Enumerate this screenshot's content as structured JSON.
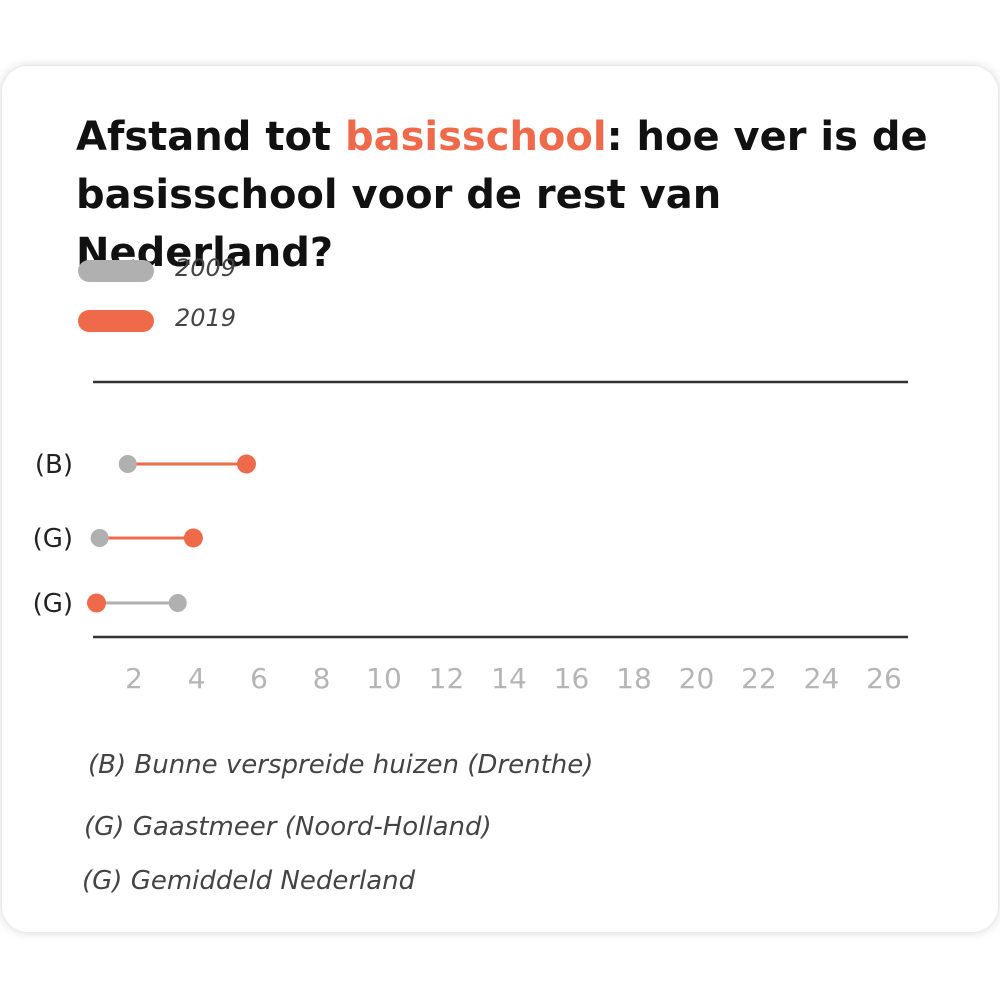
{
  "title": {
    "before": "Afstand tot ",
    "highlight": "basisschool",
    "after": ": hoe ver is de basisschool voor de rest van Nederland?"
  },
  "colors": {
    "series_2009": "#b0b0b0",
    "series_2019": "#ee6a4b",
    "axis": "#333333",
    "tick": "#b5b5b5"
  },
  "chart_data": {
    "type": "dumbbell",
    "legend": [
      {
        "name": "2009",
        "color": "#b0b0b0"
      },
      {
        "name": "2019",
        "color": "#ee6a4b"
      }
    ],
    "categories": [
      "(B)",
      "(G)",
      "(G)"
    ],
    "series": [
      {
        "name": "2009",
        "values": [
          1.8,
          0.9,
          3.4
        ]
      },
      {
        "name": "2019",
        "values": [
          5.6,
          3.9,
          0.8
        ]
      }
    ],
    "xticks": [
      "2",
      "4",
      "6",
      "8",
      "10",
      "12",
      "14",
      "16",
      "18",
      "20",
      "22",
      "24",
      "26"
    ],
    "xlim": [
      0.9,
      26.2
    ],
    "legend_position": "top-left"
  },
  "footnotes": [
    "(B) Bunne verspreide huizen (Drenthe)",
    "(G) Gaastmeer (Noord-Holland)",
    "(G) Gemiddeld Nederland"
  ]
}
